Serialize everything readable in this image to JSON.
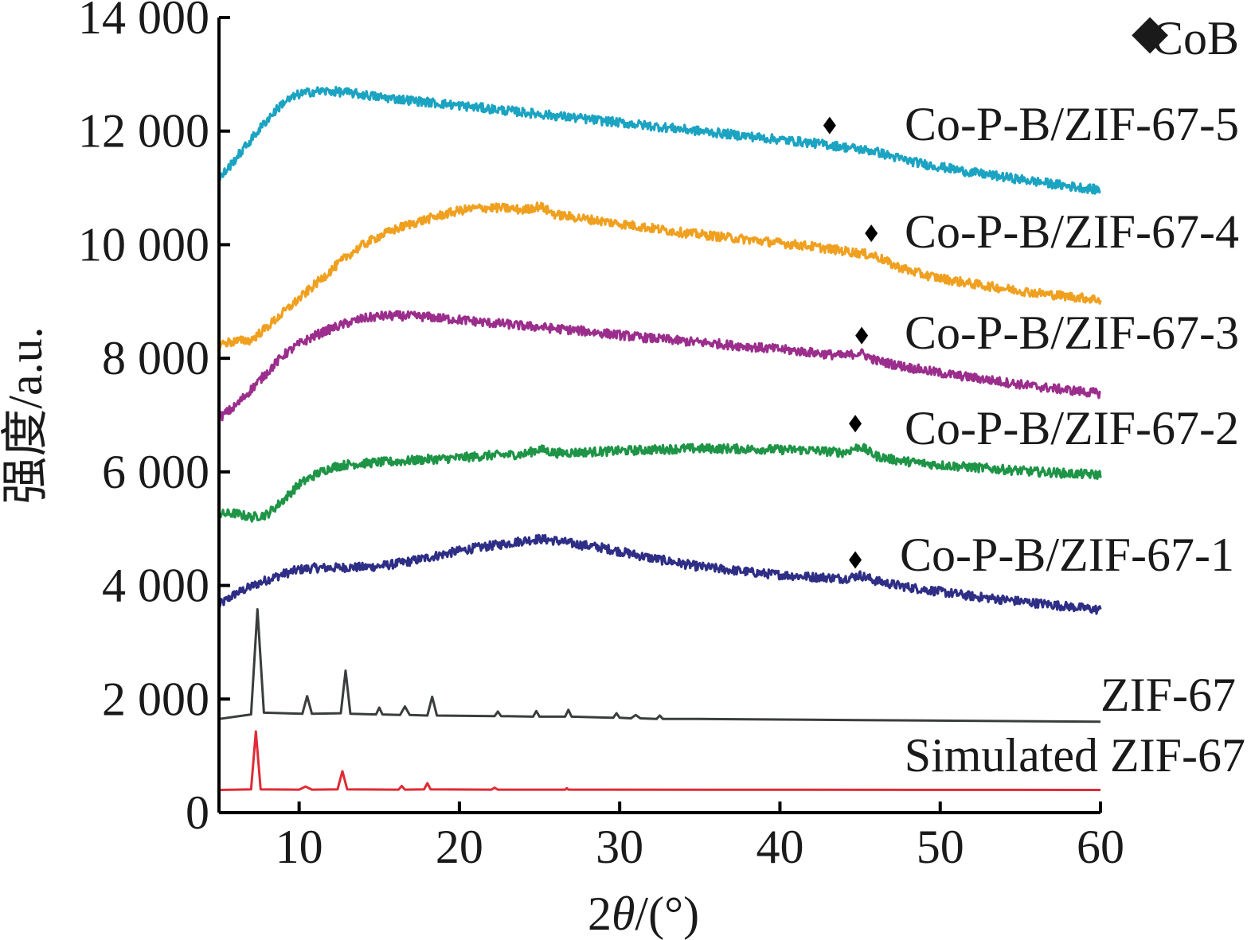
{
  "chart_data": {
    "type": "line",
    "xlabel_prefix": "2",
    "xlabel_var": "θ",
    "xlabel_suffix": "/(°)",
    "ylabel": "强度/a.u.",
    "xlim": [
      5,
      60
    ],
    "ylim": [
      0,
      14000
    ],
    "xticks": [
      10,
      20,
      30,
      40,
      50,
      60
    ],
    "yticks": [
      0,
      2000,
      4000,
      6000,
      8000,
      10000,
      12000,
      14000
    ],
    "ytick_labels": [
      "0",
      "2 000",
      "4 000",
      "6 000",
      "8 000",
      "10 000",
      "12 000",
      "14 000"
    ],
    "grid": false,
    "legend": {
      "marker": "◆",
      "label": "CoB",
      "color": "#000000"
    },
    "series": [
      {
        "name": "Simulated ZIF-67",
        "color": "#e02b35",
        "x": [
          5,
          7.0,
          7.3,
          7.6,
          10.0,
          10.4,
          10.8,
          12.4,
          12.7,
          13.0,
          16.2,
          16.4,
          16.6,
          17.8,
          18.0,
          18.2,
          22.0,
          22.2,
          22.4,
          26.6,
          26.7,
          26.8,
          60
        ],
        "values": [
          400,
          410,
          1430,
          410,
          405,
          460,
          405,
          410,
          730,
          410,
          405,
          470,
          405,
          410,
          520,
          410,
          405,
          440,
          405,
          405,
          430,
          405,
          400
        ]
      },
      {
        "name": "ZIF-67",
        "color": "#3a3d3e",
        "x": [
          5,
          7.0,
          7.4,
          7.8,
          10.2,
          10.5,
          10.8,
          12.6,
          12.9,
          13.2,
          14.8,
          15.0,
          15.2,
          16.3,
          16.6,
          16.9,
          18.0,
          18.3,
          18.6,
          22.2,
          22.4,
          22.6,
          24.6,
          24.8,
          25.0,
          26.6,
          26.8,
          27.0,
          29.6,
          29.8,
          30.0,
          30.7,
          31.0,
          31.3,
          32.3,
          32.5,
          32.7,
          35.0,
          45.0,
          60
        ],
        "values": [
          1650,
          1730,
          3580,
          1760,
          1740,
          2050,
          1740,
          1750,
          2500,
          1740,
          1730,
          1850,
          1730,
          1720,
          1870,
          1720,
          1710,
          2040,
          1710,
          1700,
          1780,
          1700,
          1690,
          1790,
          1690,
          1690,
          1810,
          1690,
          1670,
          1750,
          1670,
          1660,
          1720,
          1660,
          1650,
          1710,
          1650,
          1650,
          1630,
          1600
        ]
      },
      {
        "name": "Co-P-B/ZIF-67-1",
        "color": "#2e2e86",
        "x": [
          5,
          6,
          7,
          8,
          9,
          10,
          11,
          12,
          13,
          14,
          15,
          16,
          17,
          18,
          19,
          20,
          21,
          22,
          23,
          24,
          25,
          26,
          27,
          28,
          29,
          30,
          31,
          32,
          33,
          34,
          35,
          36,
          37,
          38,
          39,
          40,
          41,
          42,
          43,
          44,
          45,
          46,
          47,
          48,
          49,
          50,
          51,
          52,
          53,
          54,
          55,
          56,
          57,
          58,
          59,
          60
        ],
        "values": [
          3650,
          3850,
          3980,
          4100,
          4200,
          4280,
          4310,
          4310,
          4320,
          4320,
          4340,
          4380,
          4430,
          4490,
          4550,
          4610,
          4660,
          4700,
          4740,
          4790,
          4820,
          4790,
          4740,
          4700,
          4660,
          4600,
          4540,
          4480,
          4430,
          4380,
          4330,
          4300,
          4270,
          4240,
          4210,
          4190,
          4170,
          4150,
          4140,
          4120,
          4180,
          4080,
          4020,
          3970,
          3930,
          3890,
          3850,
          3810,
          3780,
          3750,
          3720,
          3690,
          3660,
          3630,
          3600,
          3570
        ]
      },
      {
        "name": "Co-P-B/ZIF-67-2",
        "color": "#1e9446",
        "x": [
          5,
          6,
          7,
          8,
          9,
          10,
          11,
          12,
          13,
          14,
          15,
          16,
          17,
          18,
          19,
          20,
          21,
          22,
          23,
          24,
          25,
          26,
          27,
          28,
          29,
          30,
          31,
          32,
          33,
          34,
          35,
          36,
          37,
          38,
          39,
          40,
          41,
          42,
          43,
          44,
          45,
          46,
          47,
          48,
          49,
          50,
          51,
          52,
          53,
          54,
          55,
          56,
          57,
          58,
          59,
          60
        ],
        "values": [
          5250,
          5270,
          5200,
          5250,
          5500,
          5780,
          5950,
          6080,
          6130,
          6150,
          6170,
          6180,
          6200,
          6220,
          6230,
          6250,
          6270,
          6290,
          6300,
          6310,
          6400,
          6330,
          6340,
          6350,
          6360,
          6370,
          6380,
          6390,
          6400,
          6410,
          6410,
          6410,
          6410,
          6400,
          6400,
          6390,
          6390,
          6380,
          6360,
          6340,
          6450,
          6280,
          6220,
          6180,
          6150,
          6120,
          6100,
          6080,
          6060,
          6040,
          6020,
          6000,
          5990,
          5970,
          5960,
          5950
        ]
      },
      {
        "name": "Co-P-B/ZIF-67-3",
        "color": "#9b2e8c",
        "x": [
          5,
          6,
          7,
          8,
          9,
          10,
          11,
          12,
          13,
          14,
          15,
          16,
          17,
          18,
          19,
          20,
          21,
          22,
          23,
          24,
          25,
          26,
          27,
          28,
          29,
          30,
          31,
          32,
          33,
          34,
          35,
          36,
          37,
          38,
          39,
          40,
          41,
          42,
          43,
          44,
          45,
          46,
          47,
          48,
          49,
          50,
          51,
          52,
          53,
          54,
          55,
          56,
          57,
          58,
          59,
          60
        ],
        "values": [
          6950,
          7150,
          7450,
          7750,
          8050,
          8250,
          8400,
          8520,
          8620,
          8700,
          8740,
          8750,
          8740,
          8730,
          8700,
          8680,
          8650,
          8620,
          8600,
          8570,
          8550,
          8520,
          8500,
          8470,
          8440,
          8410,
          8380,
          8350,
          8330,
          8300,
          8280,
          8260,
          8230,
          8210,
          8180,
          8160,
          8130,
          8100,
          8070,
          8040,
          8100,
          7960,
          7900,
          7840,
          7790,
          7740,
          7700,
          7660,
          7620,
          7580,
          7540,
          7500,
          7470,
          7440,
          7410,
          7380
        ]
      },
      {
        "name": "Co-P-B/ZIF-67-4",
        "color": "#f0a01f",
        "x": [
          5,
          6,
          7,
          8,
          9,
          10,
          11,
          12,
          13,
          14,
          15,
          16,
          17,
          18,
          19,
          20,
          21,
          22,
          23,
          24,
          25,
          26,
          27,
          28,
          29,
          30,
          31,
          32,
          33,
          34,
          35,
          36,
          37,
          38,
          39,
          40,
          41,
          42,
          43,
          44,
          45,
          46,
          47,
          48,
          49,
          50,
          51,
          52,
          53,
          54,
          55,
          56,
          57,
          58,
          59,
          60
        ],
        "values": [
          8250,
          8300,
          8320,
          8550,
          8800,
          9050,
          9300,
          9550,
          9800,
          10000,
          10150,
          10270,
          10370,
          10450,
          10530,
          10600,
          10640,
          10650,
          10640,
          10610,
          10680,
          10530,
          10490,
          10450,
          10410,
          10370,
          10330,
          10290,
          10250,
          10210,
          10180,
          10150,
          10120,
          10090,
          10060,
          10030,
          10000,
          9970,
          9930,
          9890,
          9850,
          9800,
          9650,
          9550,
          9470,
          9410,
          9360,
          9310,
          9270,
          9230,
          9190,
          9150,
          9120,
          9090,
          9060,
          9030
        ]
      },
      {
        "name": "Co-P-B/ZIF-67-5",
        "color": "#1ba3c2",
        "x": [
          5,
          6,
          7,
          8,
          9,
          10,
          11,
          12,
          13,
          14,
          15,
          16,
          17,
          18,
          19,
          20,
          21,
          22,
          23,
          24,
          25,
          26,
          27,
          28,
          29,
          30,
          31,
          32,
          33,
          34,
          35,
          36,
          37,
          38,
          39,
          40,
          41,
          42,
          43,
          44,
          45,
          46,
          47,
          48,
          49,
          50,
          51,
          52,
          53,
          54,
          55,
          56,
          57,
          58,
          59,
          60
        ],
        "values": [
          11150,
          11500,
          11850,
          12200,
          12500,
          12650,
          12700,
          12700,
          12680,
          12640,
          12600,
          12570,
          12540,
          12510,
          12480,
          12450,
          12420,
          12390,
          12360,
          12330,
          12300,
          12270,
          12240,
          12210,
          12180,
          12150,
          12120,
          12090,
          12060,
          12030,
          12000,
          11970,
          11940,
          11910,
          11880,
          11850,
          11820,
          11790,
          11760,
          11720,
          11680,
          11640,
          11550,
          11480,
          11420,
          11370,
          11320,
          11270,
          11230,
          11190,
          11150,
          11110,
          11070,
          11030,
          11000,
          10960
        ]
      }
    ],
    "cob_markers": [
      {
        "x": 43.1,
        "y": 12100
      },
      {
        "x": 45.7,
        "y": 10200
      },
      {
        "x": 45.1,
        "y": 8400
      },
      {
        "x": 44.7,
        "y": 6850
      },
      {
        "x": 44.7,
        "y": 4450
      }
    ]
  }
}
